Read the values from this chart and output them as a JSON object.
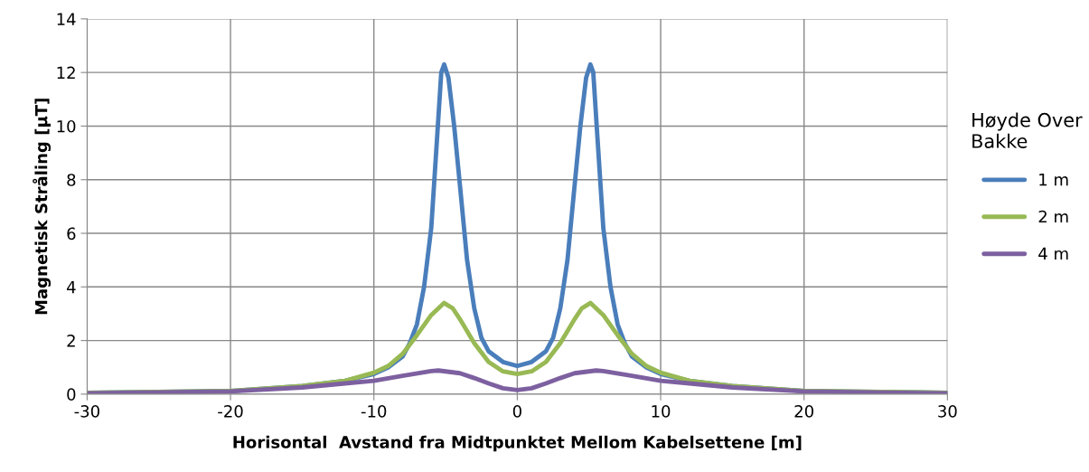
{
  "chart_data": {
    "type": "line",
    "xlabel": "Horisontal  Avstand fra Midtpunktet Mellom Kabelsettene [m]",
    "ylabel": "Magnetisk Stråling [µT]",
    "legend_title": "Høyde Over\nBakke",
    "legend": "right",
    "grid": true,
    "xlim": [
      -30,
      30
    ],
    "xticks": [
      -30,
      -20,
      -10,
      0,
      10,
      20,
      30
    ],
    "ylim": [
      0,
      14
    ],
    "yticks": [
      0,
      2,
      4,
      6,
      8,
      10,
      12,
      14
    ],
    "marker": "none",
    "line_style": "solid",
    "series": [
      {
        "name": "1 m",
        "color": "#4a7ebb",
        "x": [
          -30,
          -25,
          -20,
          -15,
          -12,
          -10,
          -9,
          -8,
          -7.5,
          -7,
          -6.5,
          -6,
          -5.6,
          -5.3,
          -5.1,
          -4.8,
          -4.4,
          -4,
          -3.5,
          -3,
          -2.5,
          -2,
          -1,
          0,
          1,
          2,
          2.5,
          3,
          3.5,
          4,
          4.4,
          4.8,
          5.1,
          5.3,
          5.6,
          6,
          6.5,
          7,
          7.5,
          8,
          9,
          10,
          12,
          15,
          20,
          25,
          30
        ],
        "values": [
          0.05,
          0.08,
          0.12,
          0.3,
          0.5,
          0.75,
          1.0,
          1.4,
          1.9,
          2.6,
          4.0,
          6.2,
          9.5,
          12.0,
          12.3,
          11.8,
          10.0,
          7.8,
          5.0,
          3.2,
          2.1,
          1.6,
          1.2,
          1.05,
          1.2,
          1.6,
          2.1,
          3.2,
          5.0,
          7.8,
          10.0,
          11.8,
          12.3,
          12.0,
          9.5,
          6.2,
          4.0,
          2.6,
          1.9,
          1.4,
          1.0,
          0.75,
          0.5,
          0.3,
          0.12,
          0.08,
          0.05
        ]
      },
      {
        "name": "2 m",
        "color": "#98b954",
        "x": [
          -30,
          -20,
          -15,
          -12,
          -10,
          -9,
          -8,
          -7,
          -6,
          -5.1,
          -4.5,
          -4,
          -3,
          -2,
          -1,
          0,
          1,
          2,
          3,
          4,
          4.5,
          5.1,
          6,
          7,
          8,
          9,
          10,
          12,
          15,
          20,
          30
        ],
        "values": [
          0.05,
          0.12,
          0.3,
          0.5,
          0.8,
          1.05,
          1.5,
          2.2,
          2.95,
          3.4,
          3.2,
          2.8,
          1.9,
          1.2,
          0.85,
          0.75,
          0.85,
          1.2,
          1.9,
          2.8,
          3.2,
          3.4,
          2.95,
          2.2,
          1.5,
          1.05,
          0.8,
          0.5,
          0.3,
          0.12,
          0.05
        ]
      },
      {
        "name": "4 m",
        "color": "#7d60a0",
        "x": [
          -30,
          -20,
          -15,
          -12,
          -10,
          -8,
          -6,
          -5.5,
          -4,
          -3,
          -2,
          -1,
          0,
          1,
          2,
          3,
          4,
          5.5,
          6,
          8,
          10,
          12,
          15,
          20,
          30
        ],
        "values": [
          0.03,
          0.1,
          0.25,
          0.4,
          0.5,
          0.68,
          0.86,
          0.88,
          0.78,
          0.6,
          0.4,
          0.22,
          0.15,
          0.22,
          0.4,
          0.6,
          0.78,
          0.88,
          0.86,
          0.68,
          0.5,
          0.4,
          0.25,
          0.1,
          0.03
        ]
      }
    ]
  }
}
